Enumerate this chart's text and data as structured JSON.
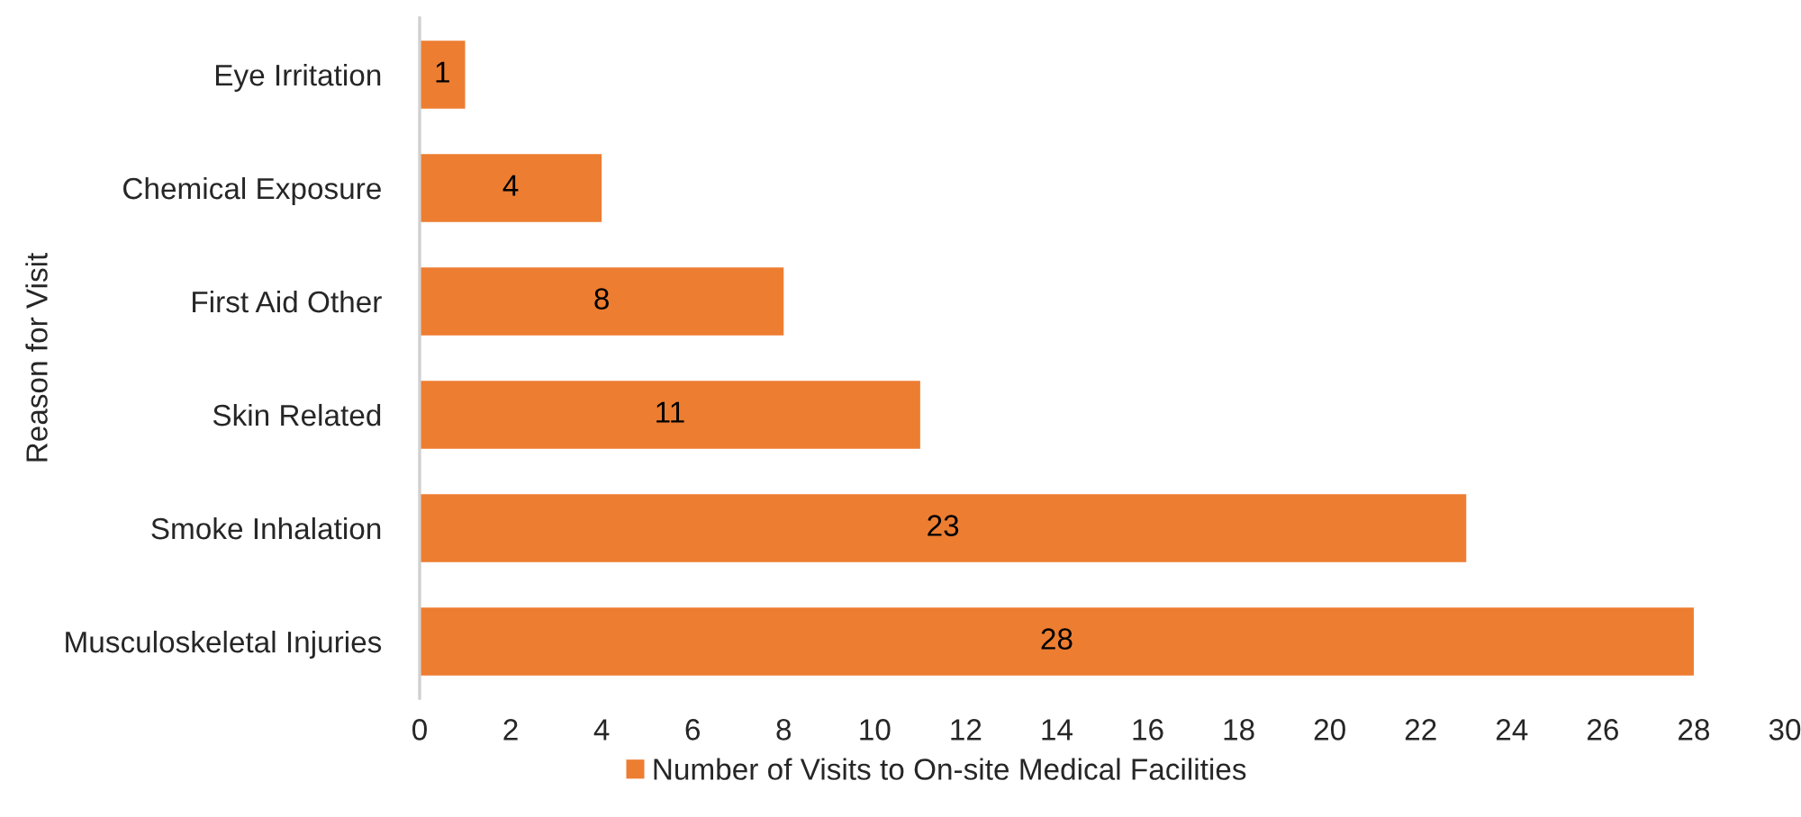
{
  "chart_data": {
    "type": "bar",
    "orientation": "horizontal",
    "ylabel": "Reason for Visit",
    "categories": [
      "Eye Irritation",
      "Chemical Exposure",
      "First Aid Other",
      "Skin Related",
      "Smoke Inhalation",
      "Musculoskeletal Injuries"
    ],
    "series": [
      {
        "name": "Number of Visits to On-site Medical Facilities",
        "color": "#ed7d31",
        "values": [
          1,
          4,
          8,
          11,
          23,
          28
        ]
      }
    ],
    "xlim": [
      0,
      30
    ],
    "xticks": [
      0,
      2,
      4,
      6,
      8,
      10,
      12,
      14,
      16,
      18,
      20,
      22,
      24,
      26,
      28,
      30
    ],
    "data_labels": true,
    "legend": "bottom",
    "grid": false
  }
}
